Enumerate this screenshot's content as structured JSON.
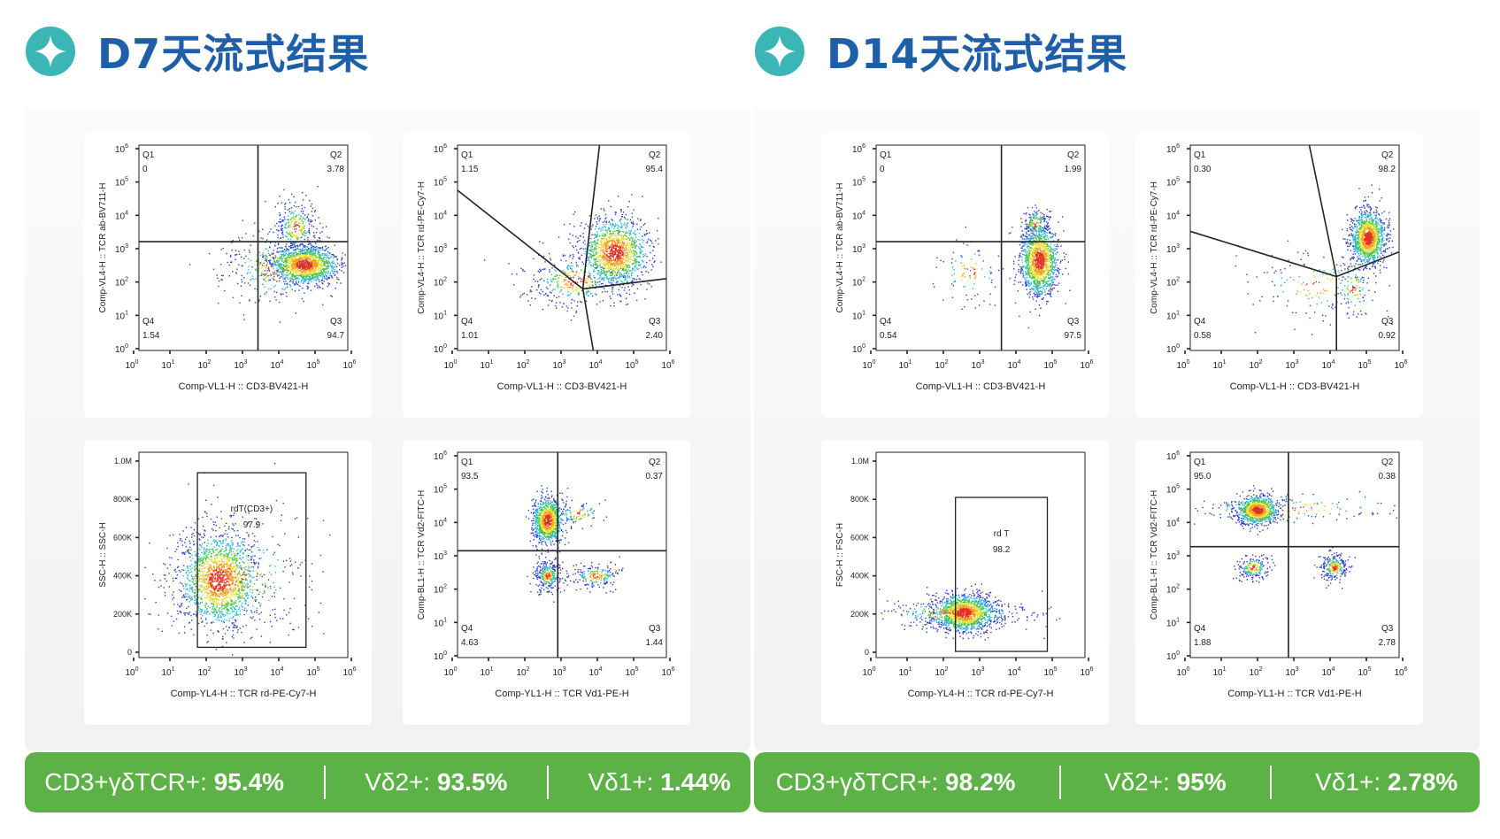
{
  "sections": [
    {
      "title": "D7天流式结果",
      "plots": [
        {
          "y_label": "Comp-VL4-H :: TCR ab-BV711-H",
          "x_label": "Comp-VL1-H :: CD3-BV421-H",
          "gates": [
            {
              "name": "Q1",
              "value": "0"
            },
            {
              "name": "Q2",
              "value": "3.78"
            },
            {
              "name": "Q3",
              "value": "94.7"
            },
            {
              "name": "Q4",
              "value": "1.54"
            }
          ]
        },
        {
          "y_label": "Comp-VL4-H :: TCR rd-PE-Cy7-H",
          "x_label": "Comp-VL1-H :: CD3-BV421-H",
          "gates": [
            {
              "name": "Q1",
              "value": "1.15"
            },
            {
              "name": "Q2",
              "value": "95.4"
            },
            {
              "name": "Q3",
              "value": "2.40"
            },
            {
              "name": "Q4",
              "value": "1.01"
            }
          ]
        },
        {
          "y_label": "SSC-H :: SSC-H",
          "x_label": "Comp-YL4-H :: TCR rd-PE-Cy7-H",
          "gates": [
            {
              "name": "rdT(CD3+)",
              "value": "97.9"
            }
          ]
        },
        {
          "y_label": "Comp-BL1-H :: TCR Vd2-FITC-H",
          "x_label": "Comp-YL1-H :: TCR Vd1-PE-H",
          "gates": [
            {
              "name": "Q1",
              "value": "93.5"
            },
            {
              "name": "Q2",
              "value": "0.37"
            },
            {
              "name": "Q3",
              "value": "1.44"
            },
            {
              "name": "Q4",
              "value": "4.63"
            }
          ]
        }
      ],
      "summary": [
        {
          "label": "CD3+γδTCR+: ",
          "value": "95.4%"
        },
        {
          "label": "Vδ2+: ",
          "value": "93.5%"
        },
        {
          "label": "Vδ1+: ",
          "value": "1.44%"
        }
      ]
    },
    {
      "title": "D14天流式结果",
      "plots": [
        {
          "y_label": "Comp-VL4-H :: TCR ab-BV711-H",
          "x_label": "Comp-VL1-H :: CD3-BV421-H",
          "gates": [
            {
              "name": "Q1",
              "value": "0"
            },
            {
              "name": "Q2",
              "value": "1.99"
            },
            {
              "name": "Q3",
              "value": "97.5"
            },
            {
              "name": "Q4",
              "value": "0.54"
            }
          ]
        },
        {
          "y_label": "Comp-VL4-H :: TCR rd-PE-Cy7-H",
          "x_label": "Comp-VL1-H :: CD3-BV421-H",
          "gates": [
            {
              "name": "Q1",
              "value": "0.30"
            },
            {
              "name": "Q2",
              "value": "98.2"
            },
            {
              "name": "Q3",
              "value": "0.92"
            },
            {
              "name": "Q4",
              "value": "0.58"
            }
          ]
        },
        {
          "y_label": "FSC-H :: FSC-H",
          "x_label": "Comp-YL4-H :: TCR rd-PE-Cy7-H",
          "gates": [
            {
              "name": "rd T",
              "value": "98.2"
            }
          ]
        },
        {
          "y_label": "Comp-BL1-H :: TCR Vd2-FITC-H",
          "x_label": "Comp-YL1-H :: TCR Vd1-PE-H",
          "gates": [
            {
              "name": "Q1",
              "value": "95.0"
            },
            {
              "name": "Q2",
              "value": "0.38"
            },
            {
              "name": "Q3",
              "value": "2.78"
            },
            {
              "name": "Q4",
              "value": "1.88"
            }
          ]
        }
      ],
      "summary": [
        {
          "label": "CD3+γδTCR+: ",
          "value": "98.2%"
        },
        {
          "label": "Vδ2+: ",
          "value": "95%"
        },
        {
          "label": "Vδ1+: ",
          "value": "2.78%"
        }
      ]
    }
  ],
  "log_base": "10",
  "log_exponents": [
    "0",
    "1",
    "2",
    "3",
    "4",
    "5",
    "6"
  ],
  "linear_ticks": [
    "0",
    "200K",
    "400K",
    "600K",
    "800K",
    "1.0M"
  ]
}
